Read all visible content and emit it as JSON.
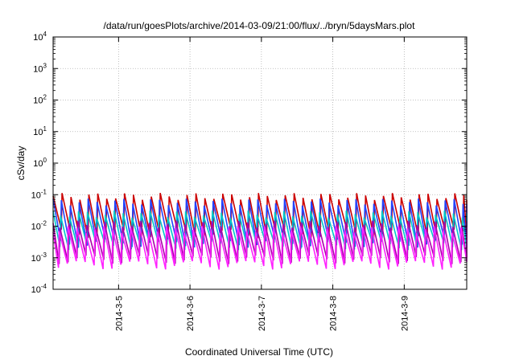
{
  "chart_data": {
    "type": "line",
    "title": "/data/run/goesPlots/archive/2014-03-09/21:00/flux/../bryn/5daysMars.plot",
    "xlabel": "Coordinated Universal Time (UTC)",
    "ylabel": "cSv/day",
    "yscale": "log",
    "ylim": [
      0.0001,
      10000
    ],
    "y_ticks": [
      {
        "base": "10",
        "exp": "-4"
      },
      {
        "base": "10",
        "exp": "-3"
      },
      {
        "base": "10",
        "exp": "-2"
      },
      {
        "base": "10",
        "exp": "-1"
      },
      {
        "base": "10",
        "exp": "0"
      },
      {
        "base": "10",
        "exp": "1"
      },
      {
        "base": "10",
        "exp": "2"
      },
      {
        "base": "10",
        "exp": "3"
      },
      {
        "base": "10",
        "exp": "4"
      }
    ],
    "x_range_days": [
      "2014-03-04 02:00",
      "2014-03-09 21:00"
    ],
    "x_ticks": [
      "2014-3-5",
      "2014-3-6",
      "2014-3-7",
      "2014-3-8",
      "2014-3-9"
    ],
    "grid": true,
    "legend": "none",
    "pattern": {
      "description_values": "sawtooth oscillation repeated over the full time range",
      "period_hours": 3,
      "series": [
        {
          "color": "#cc0000",
          "peak": 0.09,
          "trough": 0.006
        },
        {
          "color": "#2244ff",
          "peak": 0.06,
          "trough": 0.003
        },
        {
          "color": "#00c8c8",
          "peak": 0.025,
          "trough": 0.0025
        },
        {
          "color": "#aa00aa",
          "peak": 0.012,
          "trough": 0.0009
        },
        {
          "color": "#ff22ff",
          "peak": 0.008,
          "trough": 0.0006
        }
      ]
    }
  }
}
